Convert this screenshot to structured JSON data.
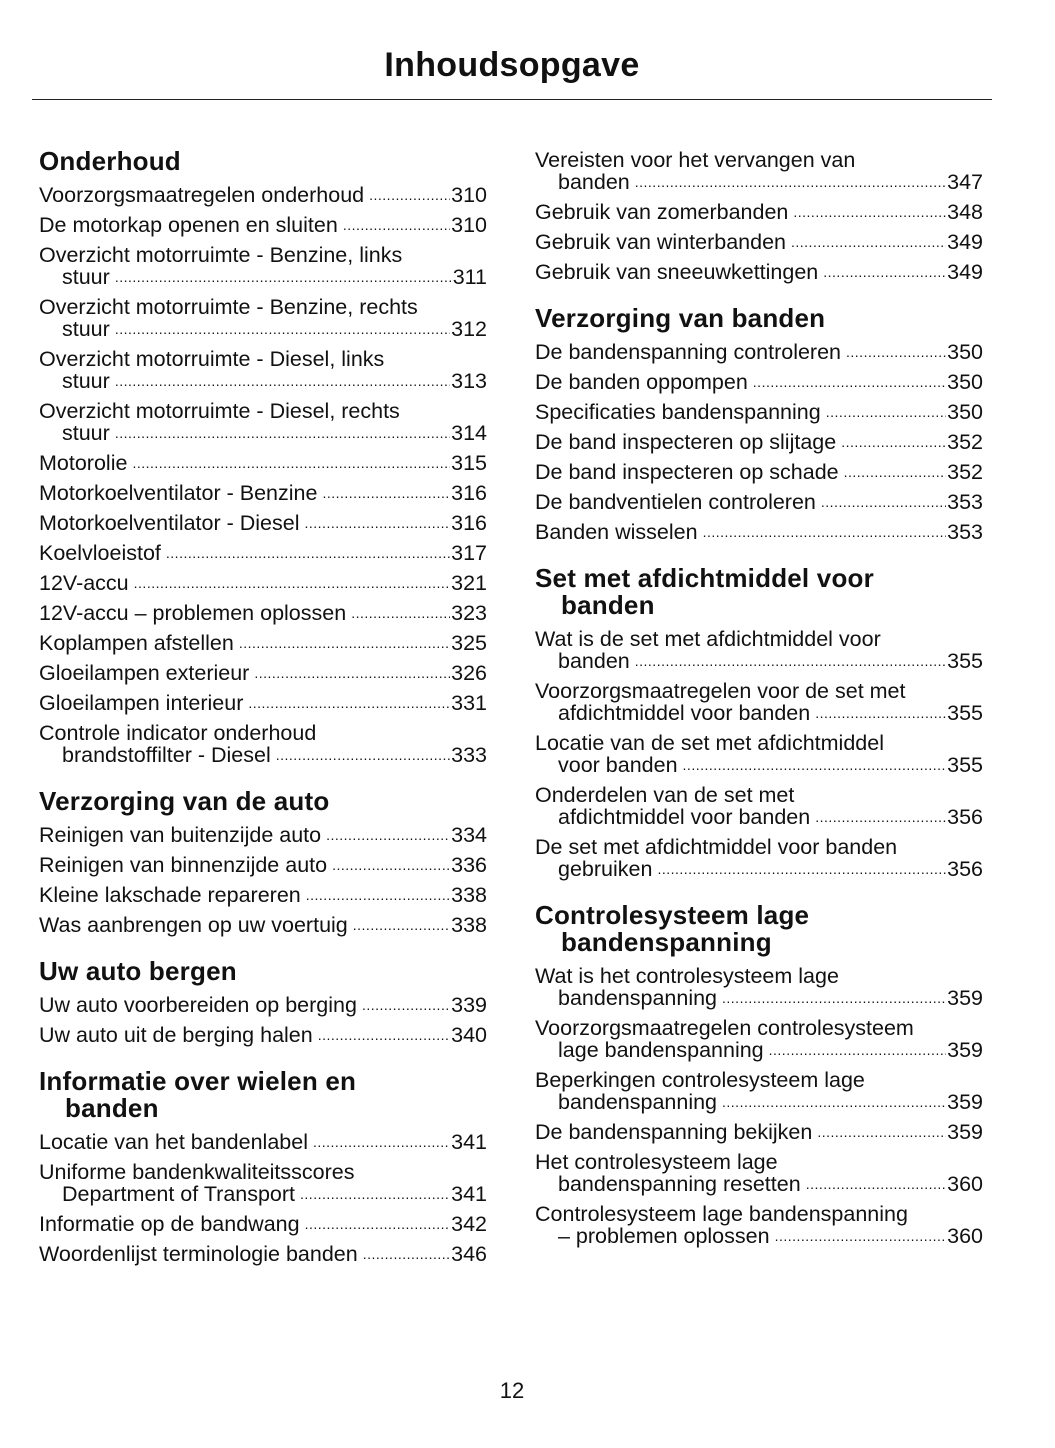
{
  "title": "Inhoudsopgave",
  "page_number": "12",
  "columns": [
    [
      {
        "heading": [
          "Onderhoud"
        ],
        "entries": [
          {
            "title": "Voorzorgsmaatregelen onderhoud",
            "page": "310"
          },
          {
            "title": "De motorkap openen en sluiten",
            "page": "310"
          },
          {
            "title": "Overzicht motorruimte - Benzine, links",
            "cont": "stuur",
            "page": "311"
          },
          {
            "title": "Overzicht motorruimte - Benzine, rechts",
            "cont": "stuur",
            "page": "312"
          },
          {
            "title": "Overzicht motorruimte - Diesel, links",
            "cont": "stuur",
            "page": "313"
          },
          {
            "title": "Overzicht motorruimte - Diesel, rechts",
            "cont": "stuur",
            "page": "314"
          },
          {
            "title": "Motorolie",
            "page": "315"
          },
          {
            "title": "Motorkoelventilator - Benzine",
            "page": "316"
          },
          {
            "title": "Motorkoelventilator - Diesel",
            "page": "316"
          },
          {
            "title": "Koelvloeistof",
            "page": "317"
          },
          {
            "title": "12V-accu",
            "page": "321"
          },
          {
            "title": "12V-accu – problemen oplossen",
            "page": "323"
          },
          {
            "title": "Koplampen afstellen",
            "page": "325"
          },
          {
            "title": "Gloeilampen exterieur",
            "page": "326"
          },
          {
            "title": "Gloeilampen interieur",
            "page": "331"
          },
          {
            "title": "Controle indicator onderhoud",
            "cont": "brandstoffilter - Diesel",
            "page": "333"
          }
        ]
      },
      {
        "heading": [
          "Verzorging van de auto"
        ],
        "entries": [
          {
            "title": "Reinigen van buitenzijde auto",
            "page": "334"
          },
          {
            "title": "Reinigen van binnenzijde auto",
            "page": "336"
          },
          {
            "title": "Kleine lakschade repareren",
            "page": "338"
          },
          {
            "title": "Was aanbrengen op uw voertuig",
            "page": "338"
          }
        ]
      },
      {
        "heading": [
          "Uw auto bergen"
        ],
        "entries": [
          {
            "title": "Uw auto voorbereiden op berging",
            "page": "339"
          },
          {
            "title": "Uw auto uit de berging halen",
            "page": "340"
          }
        ]
      },
      {
        "heading": [
          "Informatie over wielen en",
          "banden"
        ],
        "entries": [
          {
            "title": "Locatie van het bandenlabel",
            "page": "341"
          },
          {
            "title": "Uniforme bandenkwaliteitsscores",
            "cont": "Department of Transport",
            "page": "341"
          },
          {
            "title": "Informatie op de bandwang",
            "page": "342"
          },
          {
            "title": "Woordenlijst terminologie banden",
            "page": "346"
          }
        ]
      }
    ],
    [
      {
        "heading": [],
        "entries": [
          {
            "title": "Vereisten voor het vervangen van",
            "cont": "banden",
            "page": "347"
          },
          {
            "title": "Gebruik van zomerbanden",
            "page": "348"
          },
          {
            "title": "Gebruik van winterbanden",
            "page": "349"
          },
          {
            "title": "Gebruik van sneeuwkettingen",
            "page": "349"
          }
        ]
      },
      {
        "heading": [
          "Verzorging van banden"
        ],
        "entries": [
          {
            "title": "De bandenspanning controleren",
            "page": "350"
          },
          {
            "title": "De banden oppompen",
            "page": "350"
          },
          {
            "title": "Specificaties bandenspanning",
            "page": "350"
          },
          {
            "title": "De band inspecteren op slijtage",
            "page": "352"
          },
          {
            "title": "De band inspecteren op schade",
            "page": "352"
          },
          {
            "title": "De bandventielen controleren",
            "page": "353"
          },
          {
            "title": "Banden wisselen",
            "page": "353"
          }
        ]
      },
      {
        "heading": [
          "Set met afdichtmiddel voor",
          "banden"
        ],
        "entries": [
          {
            "title": "Wat is de set met afdichtmiddel voor",
            "cont": "banden",
            "page": "355"
          },
          {
            "title": "Voorzorgsmaatregelen voor de set met",
            "cont": "afdichtmiddel voor banden",
            "page": "355"
          },
          {
            "title": "Locatie van de set met afdichtmiddel",
            "cont": "voor banden",
            "page": "355"
          },
          {
            "title": "Onderdelen van de set met",
            "cont": "afdichtmiddel voor banden",
            "page": "356"
          },
          {
            "title": "De set met afdichtmiddel voor banden",
            "cont": "gebruiken",
            "page": "356"
          }
        ]
      },
      {
        "heading": [
          "Controlesysteem lage",
          "bandenspanning"
        ],
        "entries": [
          {
            "title": "Wat is het controlesysteem lage",
            "cont": "bandenspanning",
            "page": "359"
          },
          {
            "title": "Voorzorgsmaatregelen controlesysteem",
            "cont": "lage bandenspanning",
            "page": "359"
          },
          {
            "title": "Beperkingen controlesysteem lage",
            "cont": "bandenspanning",
            "page": "359"
          },
          {
            "title": "De bandenspanning bekijken",
            "page": "359"
          },
          {
            "title": "Het controlesysteem lage",
            "cont": "bandenspanning resetten",
            "page": "360"
          },
          {
            "title": "Controlesysteem lage bandenspanning",
            "cont": "– problemen oplossen",
            "page": "360"
          }
        ]
      }
    ]
  ]
}
